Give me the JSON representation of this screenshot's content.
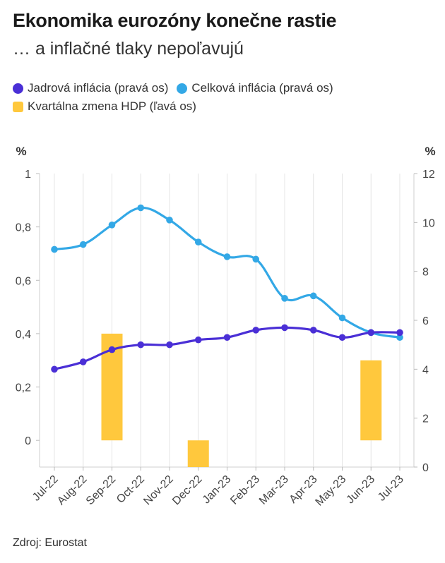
{
  "header": {
    "title": "Ekonomika eurozóny konečne rastie",
    "subtitle": "… a inflačné tlaky nepoľavujú"
  },
  "legend": [
    {
      "label": "Jadrová inflácia (pravá os)",
      "color": "#4a2fd6"
    },
    {
      "label": "Celková inflácia (pravá os)",
      "color": "#33a8e6"
    },
    {
      "label": "Kvartálna zmena HDP (ľavá os)",
      "color": "#ffc83d"
    }
  ],
  "axes": {
    "left_unit": "%",
    "right_unit": "%"
  },
  "source": "Zdroj: Eurostat",
  "chart_data": {
    "type": "bar+line",
    "categories": [
      "Jul-22",
      "Aug-22",
      "Sep-22",
      "Oct-22",
      "Nov-22",
      "Dec-22",
      "Jan-23",
      "Feb-23",
      "Mar-23",
      "Apr-23",
      "May-23",
      "Jun-23",
      "Jul-23"
    ],
    "left_axis": {
      "unit": "%",
      "min": -0.1,
      "max": 1,
      "ticks": [
        0,
        0.2,
        0.4,
        0.6,
        0.8,
        1
      ],
      "tick_labels": [
        "0",
        "0,2",
        "0,4",
        "0,6",
        "0,8",
        "1"
      ]
    },
    "right_axis": {
      "unit": "%",
      "min": 0,
      "max": 12,
      "ticks": [
        0,
        2,
        4,
        6,
        8,
        10,
        12
      ],
      "tick_labels": [
        "0",
        "2",
        "4",
        "6",
        "8",
        "10",
        "12"
      ]
    },
    "series": [
      {
        "name": "Kvartálna zmena HDP (ľavá os)",
        "type": "bar",
        "axis": "left",
        "color": "#ffc83d",
        "values": [
          null,
          null,
          0.4,
          null,
          null,
          -0.1,
          null,
          null,
          null,
          null,
          null,
          0.3,
          null
        ]
      },
      {
        "name": "Celková inflácia (pravá os)",
        "type": "line",
        "axis": "right",
        "color": "#33a8e6",
        "values": [
          8.9,
          9.1,
          9.9,
          10.6,
          10.1,
          9.2,
          8.6,
          8.5,
          6.9,
          7.0,
          6.1,
          5.5,
          5.3
        ]
      },
      {
        "name": "Jadrová inflácia (pravá os)",
        "type": "line",
        "axis": "right",
        "color": "#4a2fd6",
        "values": [
          4.0,
          4.3,
          4.8,
          5.0,
          5.0,
          5.2,
          5.3,
          5.6,
          5.7,
          5.6,
          5.3,
          5.5,
          5.5
        ]
      }
    ],
    "grid": "vertical"
  }
}
